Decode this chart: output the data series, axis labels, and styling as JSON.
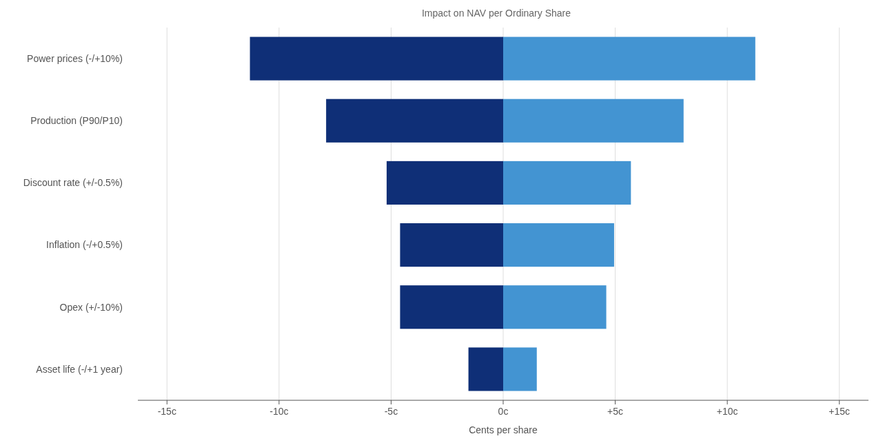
{
  "chart_data": {
    "type": "bar",
    "orientation": "horizontal",
    "stacked": true,
    "title": "Impact on NAV per Ordinary Share",
    "xlabel": "Cents per share",
    "categories": [
      "Power prices (-/+10%)",
      "Production (P90/P10)",
      "Discount rate (+/-0.5%)",
      "Inflation (-/+0.5%)",
      "Opex (+/-10%)",
      "Asset life (-/+1 year)"
    ],
    "series": [
      {
        "color": "#0f2f77",
        "values": [
          -11.3,
          -7.9,
          -5.2,
          -4.6,
          -4.6,
          -1.55
        ]
      },
      {
        "color": "#4394d2",
        "values": [
          11.25,
          8.05,
          5.7,
          4.95,
          4.6,
          1.5
        ]
      }
    ],
    "xlim": [
      -16.3,
      16.3
    ],
    "xticks": [
      {
        "value": -15,
        "label": "-15c"
      },
      {
        "value": -10,
        "label": "-10c"
      },
      {
        "value": -5,
        "label": "-5c"
      },
      {
        "value": 0,
        "label": "0c"
      },
      {
        "value": 5,
        "label": "+5c"
      },
      {
        "value": 10,
        "label": "+10c"
      },
      {
        "value": 15,
        "label": "+15c"
      }
    ],
    "grid": "x"
  }
}
